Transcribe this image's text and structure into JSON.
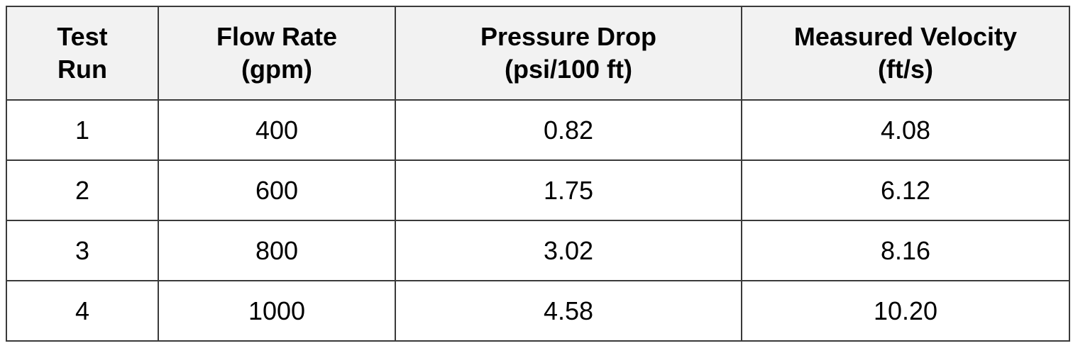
{
  "table": {
    "header": [
      [
        "Test",
        "Run"
      ],
      [
        "Flow Rate",
        "(gpm)"
      ],
      [
        "Pressure Drop",
        "(psi/100 ft)"
      ],
      [
        "Measured Velocity",
        "(ft/s)"
      ]
    ],
    "rows": [
      [
        "1",
        "400",
        "0.82",
        "4.08"
      ],
      [
        "2",
        "600",
        "1.75",
        "6.12"
      ],
      [
        "3",
        "800",
        "3.02",
        "8.16"
      ],
      [
        "4",
        "1000",
        "4.58",
        "10.20"
      ]
    ]
  }
}
